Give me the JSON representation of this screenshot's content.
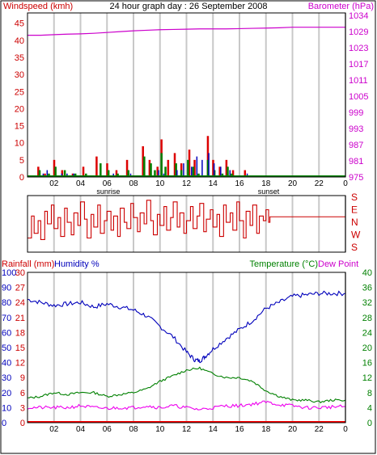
{
  "colors": {
    "wind_avg": "#008000",
    "wind_gust": "#dd0000",
    "wind_hi": "#0000bb",
    "barometer": "#cc00cc",
    "direction": "#cc0000",
    "temperature": "#0000bb",
    "dewpoint": "#008000",
    "humidity": "#ee00ee",
    "rainfall": "#ff0000",
    "grid": "#c8c8c8",
    "frame": "#000000"
  },
  "chart_data": [
    {
      "type": "bar",
      "title": "24 hour graph day : 26 September 2008",
      "y_left_label": "Windspeed (kmh)",
      "y_right_label": "Barometer (hPa)",
      "y_left_ticks": [
        "0",
        "5",
        "10",
        "15",
        "20",
        "25",
        "30",
        "35",
        "40",
        "45"
      ],
      "y_right_ticks": [
        "975",
        "981",
        "987",
        "993",
        "999",
        "1005",
        "1011",
        "1017",
        "1023",
        "1029",
        "1034"
      ],
      "x_ticks": [
        "02",
        "04",
        "06",
        "08",
        "10",
        "12",
        "14",
        "16",
        "18",
        "20",
        "22",
        "0"
      ],
      "sunrise_label": "sunrise",
      "sunset_label": "sunset",
      "sunrise_hour": 6.1,
      "sunset_hour": 18.2,
      "ylim": [
        0,
        48
      ],
      "series": [
        {
          "name": "Windspeed",
          "points": [
            [
              0.9,
              2
            ],
            [
              1.6,
              1
            ],
            [
              2.1,
              3
            ],
            [
              2.8,
              2
            ],
            [
              3.6,
              1
            ],
            [
              4.4,
              1
            ],
            [
              5.5,
              4
            ],
            [
              6.1,
              2
            ],
            [
              6.8,
              1
            ],
            [
              7.6,
              2
            ],
            [
              8.8,
              6
            ],
            [
              9.3,
              4
            ],
            [
              9.6,
              2
            ],
            [
              10.1,
              7
            ],
            [
              10.4,
              3
            ],
            [
              11.2,
              4
            ],
            [
              11.6,
              2
            ],
            [
              12.1,
              5
            ],
            [
              12.5,
              3
            ],
            [
              12.9,
              1
            ],
            [
              13.6,
              5
            ],
            [
              14.1,
              2
            ],
            [
              14.7,
              1
            ],
            [
              15.1,
              3
            ],
            [
              15.4,
              1
            ]
          ]
        },
        {
          "name": "Gust",
          "points": [
            [
              0.8,
              3
            ],
            [
              1.3,
              1
            ],
            [
              2.0,
              5
            ],
            [
              2.6,
              2
            ],
            [
              3.4,
              1
            ],
            [
              4.2,
              3
            ],
            [
              5.2,
              6
            ],
            [
              6.0,
              4
            ],
            [
              6.7,
              2
            ],
            [
              7.5,
              5
            ],
            [
              8.7,
              9
            ],
            [
              9.2,
              5
            ],
            [
              9.8,
              3
            ],
            [
              10.1,
              11
            ],
            [
              10.6,
              5
            ],
            [
              11.1,
              7
            ],
            [
              11.6,
              4
            ],
            [
              12.2,
              8
            ],
            [
              12.6,
              5
            ],
            [
              13.6,
              12
            ],
            [
              14.0,
              5
            ],
            [
              14.5,
              3
            ],
            [
              15.0,
              5
            ],
            [
              15.5,
              2
            ],
            [
              16.4,
              2
            ]
          ]
        },
        {
          "name": "Hi Wind",
          "points": [
            [
              1.2,
              1
            ],
            [
              1.5,
              2
            ],
            [
              2.6,
              1
            ],
            [
              3.0,
              1
            ],
            [
              3.5,
              1
            ],
            [
              6.5,
              1
            ],
            [
              7.8,
              1
            ],
            [
              9.9,
              2
            ],
            [
              10.3,
              1
            ],
            [
              11.3,
              2
            ],
            [
              11.8,
              4
            ],
            [
              12.4,
              3
            ],
            [
              12.8,
              6
            ],
            [
              13.2,
              5
            ],
            [
              13.7,
              7
            ],
            [
              14.1,
              4
            ],
            [
              14.6,
              3
            ],
            [
              15.3,
              2
            ],
            [
              16.6,
              1
            ]
          ]
        },
        {
          "name": "Barometer",
          "points": [
            [
              0,
              1026.5
            ],
            [
              1,
              1026.5
            ],
            [
              2,
              1026.7
            ],
            [
              3,
              1026.9
            ],
            [
              4,
              1027.0
            ],
            [
              5,
              1027.2
            ],
            [
              6,
              1027.5
            ],
            [
              7,
              1027.8
            ],
            [
              8,
              1028.1
            ],
            [
              9,
              1028.3
            ],
            [
              10,
              1028.5
            ],
            [
              11,
              1028.6
            ],
            [
              12,
              1028.7
            ],
            [
              13,
              1028.8
            ],
            [
              14,
              1028.8
            ],
            [
              15,
              1028.8
            ],
            [
              16,
              1028.9
            ],
            [
              17,
              1029.0
            ],
            [
              18,
              1029.1
            ],
            [
              19,
              1029.2
            ],
            [
              20,
              1029.4
            ],
            [
              21,
              1029.4
            ],
            [
              22,
              1029.4
            ],
            [
              23,
              1029.4
            ],
            [
              24,
              1029.4
            ]
          ]
        }
      ]
    },
    {
      "type": "line",
      "y_right_ticks": [
        "S",
        "E",
        "N",
        "W",
        "S"
      ],
      "ylim": [
        0,
        360
      ],
      "series": [
        {
          "name": "Wind direction",
          "points": [
            [
              0,
              90
            ],
            [
              0.3,
              230
            ],
            [
              0.5,
              120
            ],
            [
              0.8,
              200
            ],
            [
              1.0,
              80
            ],
            [
              1.3,
              260
            ],
            [
              1.5,
              180
            ],
            [
              1.8,
              300
            ],
            [
              2.0,
              150
            ],
            [
              2.3,
              220
            ],
            [
              2.5,
              100
            ],
            [
              2.8,
              280
            ],
            [
              3.0,
              190
            ],
            [
              3.3,
              110
            ],
            [
              3.5,
              250
            ],
            [
              3.8,
              170
            ],
            [
              4.0,
              320
            ],
            [
              4.3,
              210
            ],
            [
              4.5,
              90
            ],
            [
              4.8,
              240
            ],
            [
              5.0,
              160
            ],
            [
              5.3,
              300
            ],
            [
              5.5,
              120
            ],
            [
              5.8,
              200
            ],
            [
              6.0,
              260
            ],
            [
              6.3,
              140
            ],
            [
              6.5,
              230
            ],
            [
              6.8,
              100
            ],
            [
              7.0,
              280
            ],
            [
              7.3,
              190
            ],
            [
              7.5,
              150
            ],
            [
              7.8,
              310
            ],
            [
              8.0,
              220
            ],
            [
              8.3,
              130
            ],
            [
              8.5,
              250
            ],
            [
              8.8,
              180
            ],
            [
              9.0,
              330
            ],
            [
              9.3,
              200
            ],
            [
              9.5,
              110
            ],
            [
              9.8,
              240
            ],
            [
              10.0,
              170
            ],
            [
              10.3,
              290
            ],
            [
              10.5,
              140
            ],
            [
              10.8,
              220
            ],
            [
              11.0,
              320
            ],
            [
              11.3,
              160
            ],
            [
              11.5,
              250
            ],
            [
              11.8,
              120
            ],
            [
              12.0,
              200
            ],
            [
              12.3,
              290
            ],
            [
              12.5,
              150
            ],
            [
              12.8,
              230
            ],
            [
              13.0,
              310
            ],
            [
              13.3,
              130
            ],
            [
              13.5,
              210
            ],
            [
              13.8,
              270
            ],
            [
              14.0,
              160
            ],
            [
              14.3,
              240
            ],
            [
              14.5,
              100
            ],
            [
              14.8,
              300
            ],
            [
              15.0,
              190
            ],
            [
              15.3,
              250
            ],
            [
              15.5,
              140
            ],
            [
              15.8,
              320
            ],
            [
              16.0,
              200
            ],
            [
              16.3,
              90
            ],
            [
              16.5,
              260
            ],
            [
              16.8,
              170
            ],
            [
              17.0,
              300
            ],
            [
              17.3,
              120
            ],
            [
              17.5,
              230
            ],
            [
              17.8,
              200
            ],
            [
              18.0,
              270
            ],
            [
              18.2,
              190
            ],
            [
              18.3,
              225
            ],
            [
              19,
              225
            ],
            [
              20,
              225
            ],
            [
              21,
              225
            ],
            [
              22,
              225
            ],
            [
              23,
              225
            ],
            [
              24,
              225
            ]
          ]
        }
      ]
    },
    {
      "type": "line",
      "y_left_label": "Rainfall (mm)",
      "y_left2_label": "Humidity %",
      "y_right_label": "Temperature (°C)",
      "y_right2_label": "Dew Point",
      "humidity_ticks": [
        "0",
        "10",
        "20",
        "30",
        "40",
        "50",
        "60",
        "70",
        "80",
        "90",
        "100"
      ],
      "rain_ticks": [
        "0",
        "3",
        "6",
        "9",
        "12",
        "15",
        "18",
        "21",
        "24",
        "27",
        "30"
      ],
      "temp_ticks": [
        "0",
        "4",
        "8",
        "12",
        "16",
        "20",
        "24",
        "28",
        "32",
        "36",
        "40"
      ],
      "x_ticks": [
        "02",
        "04",
        "06",
        "08",
        "10",
        "12",
        "14",
        "16",
        "18",
        "20",
        "22",
        "0"
      ],
      "sunrise_label": "sunrise",
      "sunset_label": "sunset",
      "series": [
        {
          "name": "Humidity",
          "points": [
            [
              0,
              82
            ],
            [
              1,
              80
            ],
            [
              2,
              78
            ],
            [
              3,
              79
            ],
            [
              4,
              80
            ],
            [
              5,
              77
            ],
            [
              6,
              79
            ],
            [
              7,
              77
            ],
            [
              8,
              75
            ],
            [
              9,
              71
            ],
            [
              10,
              64
            ],
            [
              11,
              57
            ],
            [
              12,
              47
            ],
            [
              12.6,
              42
            ],
            [
              13,
              41
            ],
            [
              13.4,
              44
            ],
            [
              14,
              49
            ],
            [
              15,
              56
            ],
            [
              16,
              62
            ],
            [
              17,
              68
            ],
            [
              18,
              76
            ],
            [
              19,
              80
            ],
            [
              20,
              84
            ],
            [
              21,
              85
            ],
            [
              22,
              86
            ],
            [
              23,
              86
            ],
            [
              24,
              86
            ]
          ]
        },
        {
          "name": "Temperature",
          "points": [
            [
              0,
              6.5
            ],
            [
              1,
              7
            ],
            [
              2,
              8
            ],
            [
              3,
              7.5
            ],
            [
              4,
              8
            ],
            [
              5,
              8
            ],
            [
              6,
              7
            ],
            [
              7,
              7.5
            ],
            [
              8,
              8
            ],
            [
              9,
              9
            ],
            [
              10,
              11
            ],
            [
              11,
              12.5
            ],
            [
              12,
              14
            ],
            [
              13,
              14.5
            ],
            [
              14,
              13
            ],
            [
              15,
              12
            ],
            [
              16,
              12
            ],
            [
              17,
              11
            ],
            [
              18,
              8.5
            ],
            [
              19,
              7
            ],
            [
              20,
              6
            ],
            [
              21,
              6
            ],
            [
              22,
              5.5
            ],
            [
              23,
              6
            ],
            [
              24,
              6
            ]
          ]
        },
        {
          "name": "Dew Point",
          "points": [
            [
              0,
              4
            ],
            [
              1,
              4
            ],
            [
              2,
              4
            ],
            [
              3,
              4
            ],
            [
              4,
              4.5
            ],
            [
              5,
              4
            ],
            [
              6,
              3.8
            ],
            [
              7,
              4
            ],
            [
              8,
              4
            ],
            [
              9,
              4.5
            ],
            [
              10,
              4
            ],
            [
              11,
              4.5
            ],
            [
              12,
              4
            ],
            [
              13,
              3.5
            ],
            [
              14,
              4
            ],
            [
              15,
              4.5
            ],
            [
              16,
              4.5
            ],
            [
              17,
              5
            ],
            [
              18,
              5.5
            ],
            [
              19,
              4.8
            ],
            [
              20,
              4.5
            ],
            [
              21,
              4
            ],
            [
              22,
              4
            ],
            [
              23,
              4.2
            ],
            [
              24,
              4.3
            ]
          ]
        },
        {
          "name": "Rainfall",
          "points": [
            [
              0,
              0
            ],
            [
              24,
              0
            ]
          ]
        }
      ]
    }
  ]
}
